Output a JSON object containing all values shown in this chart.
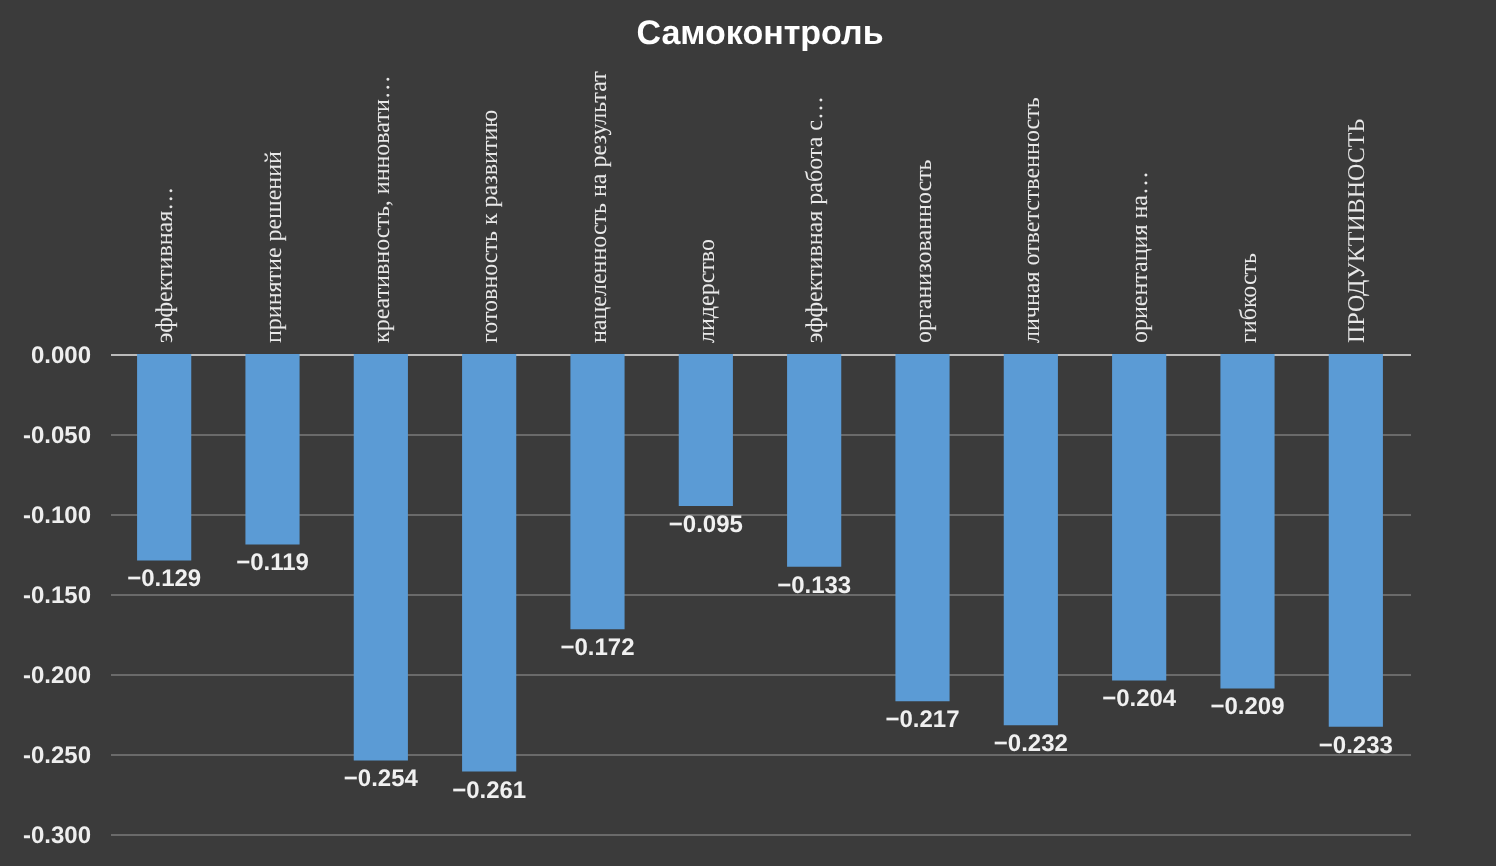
{
  "chart_data": {
    "type": "bar",
    "title": "Самоконтроль",
    "categories": [
      "эффективная…",
      "принятие решений",
      "креативность,  инновати…",
      "готовность к развитию",
      "нацеленность на результат",
      "лидерство",
      "эффективная работа с…",
      "организованность",
      "личная ответственность",
      "ориентация на…",
      "гибкость",
      "ПРОДУКТИВНОСТЬ"
    ],
    "values": [
      -0.129,
      -0.119,
      -0.254,
      -0.261,
      -0.172,
      -0.095,
      -0.133,
      -0.217,
      -0.232,
      -0.204,
      -0.209,
      -0.233
    ],
    "color": "#5b9bd5",
    "ylim": [
      -0.3,
      0
    ],
    "yticks": [
      {
        "value": 0,
        "label": "0.000"
      },
      {
        "value": -0.05,
        "label": "-0.050"
      },
      {
        "value": -0.1,
        "label": "-0.100"
      },
      {
        "value": -0.15,
        "label": "-0.150"
      },
      {
        "value": -0.2,
        "label": "-0.200"
      },
      {
        "value": -0.25,
        "label": "-0.250"
      },
      {
        "value": -0.3,
        "label": "-0.300"
      }
    ],
    "grid": "y",
    "data_labels": true
  }
}
